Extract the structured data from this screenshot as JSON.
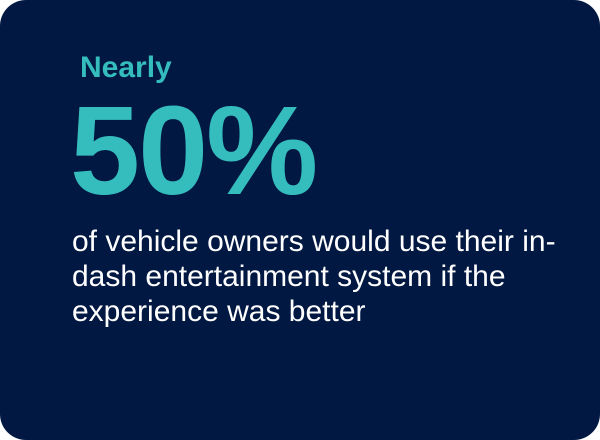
{
  "stat": {
    "lead": "Nearly",
    "value": "50%",
    "description": "of vehicle owners would use their in-dash entertainment system if the experience was better"
  },
  "colors": {
    "background": "#011842",
    "accent": "#35bdbd",
    "text": "#ffffff"
  }
}
